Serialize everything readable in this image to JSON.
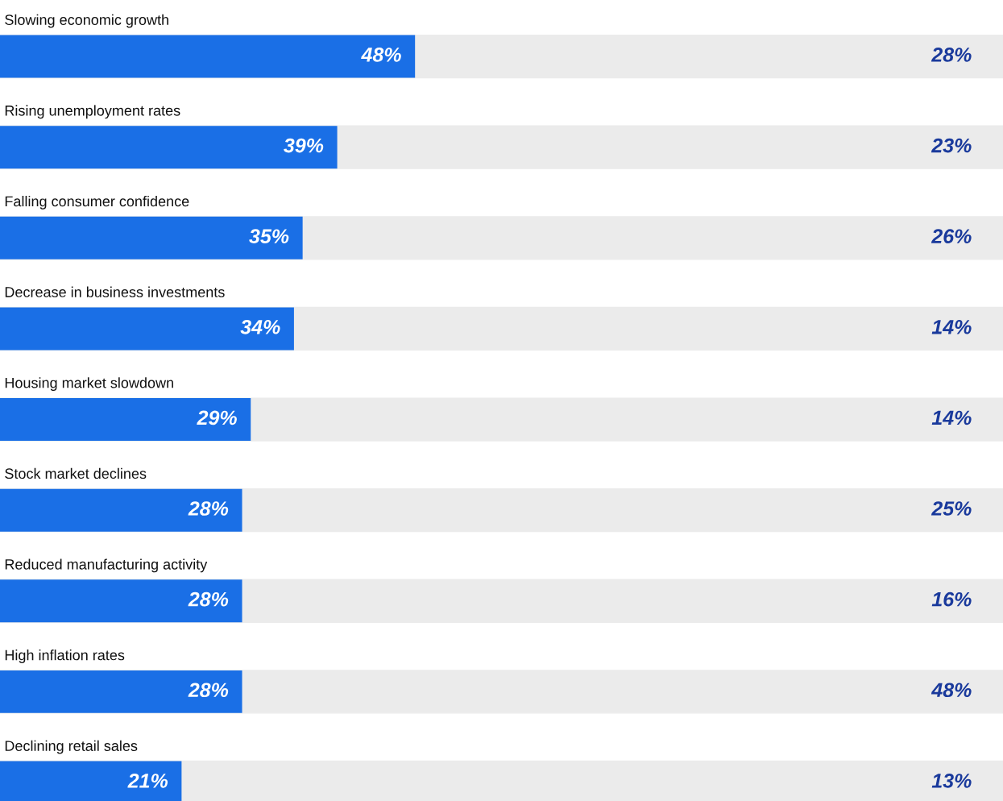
{
  "chart_data": {
    "type": "bar",
    "orientation": "horizontal",
    "categories": [
      "Slowing economic growth",
      "Rising unemployment rates",
      "Falling consumer confidence",
      "Decrease in business investments",
      "Housing market slowdown",
      "Stock market declines",
      "Reduced manufacturing activity",
      "High inflation rates",
      "Declining retail sales"
    ],
    "series": [
      {
        "color": "#1a6fe6",
        "values": [
          48,
          39,
          35,
          34,
          29,
          28,
          28,
          28,
          21
        ],
        "value_labels": [
          "48%",
          "39%",
          "35%",
          "34%",
          "29%",
          "28%",
          "28%",
          "28%",
          "21%"
        ]
      }
    ],
    "annotations": [
      "28%",
      "23%",
      "26%",
      "14%",
      "14%",
      "25%",
      "16%",
      "48%",
      "13%"
    ],
    "xlim": [
      0,
      116
    ]
  }
}
